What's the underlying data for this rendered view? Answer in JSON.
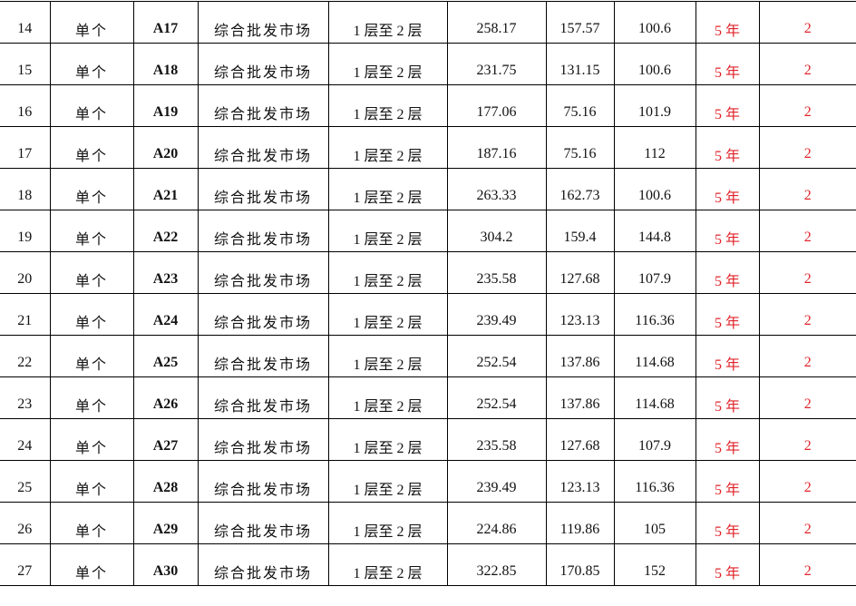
{
  "colors": {
    "accent_red": "#e0242b"
  },
  "rows": [
    {
      "no": "14",
      "type": "单个",
      "code": "A17",
      "use": "综合批发市场",
      "floors": "1 层至 2 层",
      "area_total": "258.17",
      "area_1": "157.57",
      "area_2": "100.6",
      "term": "5 年",
      "qty": "2"
    },
    {
      "no": "15",
      "type": "单个",
      "code": "A18",
      "use": "综合批发市场",
      "floors": "1 层至 2 层",
      "area_total": "231.75",
      "area_1": "131.15",
      "area_2": "100.6",
      "term": "5 年",
      "qty": "2"
    },
    {
      "no": "16",
      "type": "单个",
      "code": "A19",
      "use": "综合批发市场",
      "floors": "1 层至 2 层",
      "area_total": "177.06",
      "area_1": "75.16",
      "area_2": "101.9",
      "term": "5 年",
      "qty": "2"
    },
    {
      "no": "17",
      "type": "单个",
      "code": "A20",
      "use": "综合批发市场",
      "floors": "1 层至 2 层",
      "area_total": "187.16",
      "area_1": "75.16",
      "area_2": "112",
      "term": "5 年",
      "qty": "2"
    },
    {
      "no": "18",
      "type": "单个",
      "code": "A21",
      "use": "综合批发市场",
      "floors": "1 层至 2 层",
      "area_total": "263.33",
      "area_1": "162.73",
      "area_2": "100.6",
      "term": "5 年",
      "qty": "2"
    },
    {
      "no": "19",
      "type": "单个",
      "code": "A22",
      "use": "综合批发市场",
      "floors": "1 层至 2 层",
      "area_total": "304.2",
      "area_1": "159.4",
      "area_2": "144.8",
      "term": "5 年",
      "qty": "2"
    },
    {
      "no": "20",
      "type": "单个",
      "code": "A23",
      "use": "综合批发市场",
      "floors": "1 层至 2 层",
      "area_total": "235.58",
      "area_1": "127.68",
      "area_2": "107.9",
      "term": "5 年",
      "qty": "2"
    },
    {
      "no": "21",
      "type": "单个",
      "code": "A24",
      "use": "综合批发市场",
      "floors": "1 层至 2 层",
      "area_total": "239.49",
      "area_1": "123.13",
      "area_2": "116.36",
      "term": "5 年",
      "qty": "2"
    },
    {
      "no": "22",
      "type": "单个",
      "code": "A25",
      "use": "综合批发市场",
      "floors": "1 层至 2 层",
      "area_total": "252.54",
      "area_1": "137.86",
      "area_2": "114.68",
      "term": "5 年",
      "qty": "2"
    },
    {
      "no": "23",
      "type": "单个",
      "code": "A26",
      "use": "综合批发市场",
      "floors": "1 层至 2 层",
      "area_total": "252.54",
      "area_1": "137.86",
      "area_2": "114.68",
      "term": "5 年",
      "qty": "2"
    },
    {
      "no": "24",
      "type": "单个",
      "code": "A27",
      "use": "综合批发市场",
      "floors": "1 层至 2 层",
      "area_total": "235.58",
      "area_1": "127.68",
      "area_2": "107.9",
      "term": "5 年",
      "qty": "2"
    },
    {
      "no": "25",
      "type": "单个",
      "code": "A28",
      "use": "综合批发市场",
      "floors": "1 层至 2 层",
      "area_total": "239.49",
      "area_1": "123.13",
      "area_2": "116.36",
      "term": "5 年",
      "qty": "2"
    },
    {
      "no": "26",
      "type": "单个",
      "code": "A29",
      "use": "综合批发市场",
      "floors": "1 层至 2 层",
      "area_total": "224.86",
      "area_1": "119.86",
      "area_2": "105",
      "term": "5 年",
      "qty": "2"
    },
    {
      "no": "27",
      "type": "单个",
      "code": "A30",
      "use": "综合批发市场",
      "floors": "1 层至 2 层",
      "area_total": "322.85",
      "area_1": "170.85",
      "area_2": "152",
      "term": "5 年",
      "qty": "2"
    }
  ]
}
